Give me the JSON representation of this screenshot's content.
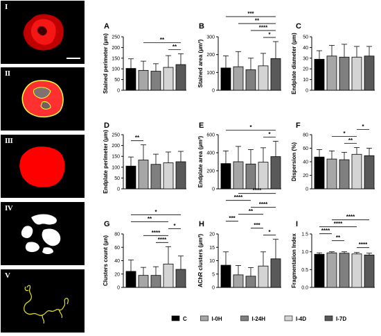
{
  "colors": {
    "C": "#000000",
    "I-0H": "#a6a6a6",
    "I-24H": "#7f7f7f",
    "I-4D": "#d4d4d4",
    "I-7D": "#595959",
    "red": "#ff0000",
    "yellow": "#e8e51a"
  },
  "image_panels": [
    {
      "label": "I"
    },
    {
      "label": "II"
    },
    {
      "label": "III"
    },
    {
      "label": "IV"
    },
    {
      "label": "V"
    }
  ],
  "legend": [
    {
      "name": "C",
      "color": "#000000"
    },
    {
      "name": "I-0H",
      "color": "#a6a6a6"
    },
    {
      "name": "I-24H",
      "color": "#7f7f7f"
    },
    {
      "name": "I-4D",
      "color": "#d4d4d4"
    },
    {
      "name": "I-7D",
      "color": "#595959"
    }
  ],
  "chart_data": [
    {
      "panel": "A",
      "type": "bar",
      "ylabel": "Stained perimeter (µm)",
      "ylim": [
        0,
        250
      ],
      "ticks": [
        0,
        50,
        100,
        150,
        200,
        250
      ],
      "categories": [
        "C",
        "I-0H",
        "I-24H",
        "I-4D",
        "I-7D"
      ],
      "values": [
        102,
        93,
        89,
        107,
        120
      ],
      "errors": [
        45,
        43,
        35,
        55,
        50
      ],
      "brackets": [
        {
          "from": 1,
          "to": 4,
          "label": "**"
        },
        {
          "from": 3,
          "to": 4,
          "label": "**"
        }
      ]
    },
    {
      "panel": "B",
      "type": "bar",
      "ylabel": "Stained area (µm²)",
      "ylim": [
        0,
        300
      ],
      "ticks": [
        0,
        100,
        200,
        300
      ],
      "categories": [
        "C",
        "I-0H",
        "I-24H",
        "I-4D",
        "I-7D"
      ],
      "values": [
        125,
        132,
        115,
        137,
        178
      ],
      "errors": [
        68,
        85,
        65,
        70,
        95
      ],
      "brackets": [
        {
          "from": 0,
          "to": 4,
          "label": "***"
        },
        {
          "from": 1,
          "to": 4,
          "label": "**"
        },
        {
          "from": 2,
          "to": 4,
          "label": "****"
        },
        {
          "from": 3,
          "to": 4,
          "label": "*"
        }
      ]
    },
    {
      "panel": "C",
      "type": "bar",
      "ylabel": "Endplate diameter (µm)",
      "ylim": [
        0,
        50
      ],
      "ticks": [
        0,
        10,
        20,
        30,
        40,
        50
      ],
      "categories": [
        "C",
        "I-0H",
        "I-24H",
        "I-4D",
        "I-7D"
      ],
      "values": [
        29,
        32,
        31,
        31,
        32
      ],
      "errors": [
        8,
        10,
        12,
        10,
        9
      ],
      "brackets": []
    },
    {
      "panel": "D",
      "type": "bar",
      "ylabel": "Endplate perimeter (µm)",
      "ylim": [
        0,
        250
      ],
      "ticks": [
        0,
        50,
        100,
        150,
        200,
        250
      ],
      "categories": [
        "C",
        "I-0H",
        "I-24H",
        "I-4D",
        "I-7D"
      ],
      "values": [
        105,
        133,
        113,
        120,
        125
      ],
      "errors": [
        42,
        70,
        47,
        50,
        48
      ],
      "brackets": [
        {
          "from": 0,
          "to": 1,
          "label": "**"
        }
      ]
    },
    {
      "panel": "E",
      "type": "bar",
      "ylabel": "Endplate area (µm²)",
      "ylim": [
        0,
        600
      ],
      "ticks": [
        0,
        200,
        400,
        600
      ],
      "categories": [
        "C",
        "I-0H",
        "I-24H",
        "I-4D",
        "I-7D"
      ],
      "values": [
        280,
        300,
        275,
        295,
        357
      ],
      "errors": [
        140,
        170,
        160,
        160,
        170
      ],
      "brackets": [
        {
          "from": 0,
          "to": 4,
          "label": "*"
        },
        {
          "from": 3,
          "to": 4,
          "label": "*"
        }
      ]
    },
    {
      "panel": "F",
      "type": "bar",
      "ylabel": "Dispersion (%)",
      "ylim": [
        0,
        80
      ],
      "ticks": [
        0,
        20,
        40,
        60,
        80
      ],
      "categories": [
        "C",
        "I-0H",
        "I-24H",
        "I-4D",
        "I-7D"
      ],
      "values": [
        47,
        44,
        43,
        51,
        49
      ],
      "errors": [
        11,
        12,
        11,
        10,
        11
      ],
      "brackets": [
        {
          "from": 3,
          "to": 4,
          "label": "*"
        },
        {
          "from": 1,
          "to": 3,
          "label": "*"
        },
        {
          "from": 2,
          "to": 3,
          "label": "**"
        }
      ]
    },
    {
      "panel": "G",
      "type": "bar",
      "ylabel": "Clusters count (µn)",
      "ylim": [
        0,
        80
      ],
      "ticks": [
        0,
        20,
        40,
        60,
        80
      ],
      "categories": [
        "C",
        "I-0H",
        "I-24H",
        "I-4D",
        "I-7D"
      ],
      "values": [
        24,
        18,
        18,
        35,
        27
      ],
      "errors": [
        17,
        12,
        13,
        26,
        20
      ],
      "brackets": [
        {
          "from": 0,
          "to": 4,
          "label": "*"
        },
        {
          "from": 0,
          "to": 3,
          "label": "**"
        },
        {
          "from": 3,
          "to": 4,
          "label": "*"
        },
        {
          "from": 1,
          "to": 3,
          "label": "****"
        },
        {
          "from": 2,
          "to": 3,
          "label": "****"
        }
      ]
    },
    {
      "panel": "H",
      "type": "bar",
      "ylabel": "AChR clusters (µm²)",
      "ylim": [
        0,
        20
      ],
      "ticks": [
        0,
        5,
        10,
        15,
        20
      ],
      "categories": [
        "C",
        "I-0H",
        "I-24H",
        "I-4D",
        "I-7D"
      ],
      "values": [
        8.3,
        4.7,
        4.2,
        8.0,
        10.7
      ],
      "errors": [
        5,
        3.5,
        3.2,
        5.3,
        7.3
      ],
      "brackets": [
        {
          "from": 1,
          "to": 4,
          "label": "****"
        },
        {
          "from": 0,
          "to": 2,
          "label": "****"
        },
        {
          "from": 2,
          "to": 4,
          "label": "****"
        },
        {
          "from": 1,
          "to": 3,
          "label": "**"
        },
        {
          "from": 0,
          "to": 1,
          "label": "***"
        },
        {
          "from": 2,
          "to": 3,
          "label": "***"
        },
        {
          "from": 3,
          "to": 4,
          "label": "*"
        }
      ]
    },
    {
      "panel": "I",
      "type": "bar",
      "ylabel": "Fragmentation Index",
      "ylim": [
        0,
        1.5
      ],
      "ticks": [
        "0.0",
        "0.5",
        "1.0",
        "1.5"
      ],
      "categories": [
        "C",
        "I-0H",
        "I-24H",
        "I-4D",
        "I-7D"
      ],
      "values": [
        0.93,
        0.97,
        0.96,
        0.94,
        0.91
      ],
      "errors": [
        0.04,
        0.03,
        0.04,
        0.04,
        0.05
      ],
      "brackets": [
        {
          "from": 1,
          "to": 4,
          "label": "****"
        },
        {
          "from": 0,
          "to": 3,
          "label": "****"
        },
        {
          "from": 0,
          "to": 1,
          "label": "****"
        },
        {
          "from": 1,
          "to": 2,
          "label": "**"
        },
        {
          "from": 3,
          "to": 4,
          "label": "****"
        }
      ]
    }
  ]
}
